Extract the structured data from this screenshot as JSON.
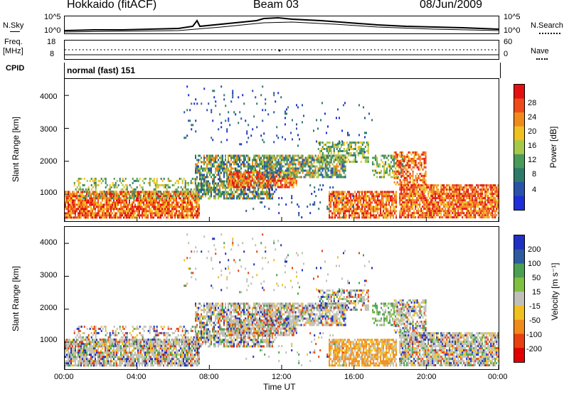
{
  "header": {
    "station": "Hokkaido (fitACF)",
    "beam": "Beam 03",
    "date": "08/Jun/2009"
  },
  "top_panels": {
    "nsky_label": "N.Sky",
    "nsearch_label": "N.Search",
    "nsky_ticks": [
      "10^5",
      "10^0"
    ],
    "freq_label_1": "Freq.",
    "freq_label_2": "[MHz]",
    "freq_ticks": [
      "18",
      "8"
    ],
    "nave_label": "Nave",
    "nave_ticks": [
      "60",
      "0"
    ],
    "cpid_label": "CPID",
    "cpid_value": "normal (fast) 151"
  },
  "colors": {
    "power_scale": [
      "#1f2fd6",
      "#2a52a8",
      "#2e7a6a",
      "#4a9a5a",
      "#a6c94a",
      "#f0c020",
      "#f08a1a",
      "#ee4a1a",
      "#e21010"
    ],
    "velocity_scale": [
      "#2030c0",
      "#2e5aa0",
      "#4aa050",
      "#80c040",
      "#c0c0b8",
      "#f0c020",
      "#f08a1a",
      "#e84010",
      "#e00000"
    ]
  },
  "chart_data": [
    {
      "type": "heatmap",
      "name": "power",
      "ylabel": "Slant Range [km]",
      "ylim": [
        180,
        4500
      ],
      "yticks": [
        "4000",
        "3000",
        "2000",
        "1000"
      ],
      "colorbar_label": "Power [dB]",
      "colorbar_ticks": [
        "28",
        "24",
        "20",
        "16",
        "12",
        "8",
        "4"
      ],
      "xticks": [
        "00:00",
        "04:00",
        "08:00",
        "12:00",
        "16:00",
        "20:00",
        "00:00"
      ],
      "xlabel": ""
    },
    {
      "type": "heatmap",
      "name": "velocity",
      "ylabel": "Slant Range [km]",
      "ylim": [
        180,
        4500
      ],
      "yticks": [
        "4000",
        "3000",
        "2000",
        "1000"
      ],
      "colorbar_label": "Velocity [m s⁻¹]",
      "colorbar_ticks": [
        "200",
        "100",
        "50",
        "15",
        "-15",
        "-50",
        "-100",
        "-200"
      ],
      "xticks": [
        "00:00",
        "04:00",
        "08:00",
        "12:00",
        "16:00",
        "20:00",
        "00:00"
      ],
      "xlabel": "Time UT"
    }
  ]
}
